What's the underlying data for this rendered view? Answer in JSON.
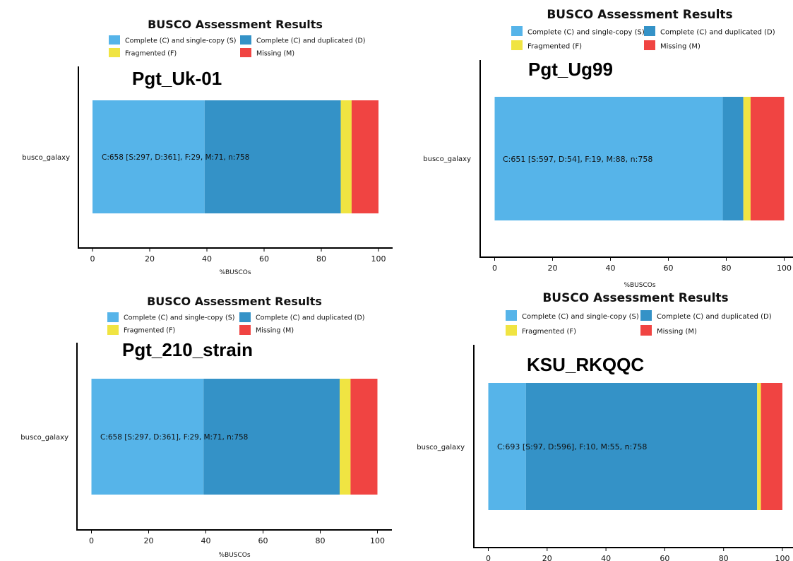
{
  "colors": {
    "single": "#56b4e9",
    "duplicated": "#3492c7",
    "fragmented": "#f0e442",
    "missing": "#f04442"
  },
  "legend": [
    {
      "key": "single",
      "label": "Complete (C) and single-copy (S)"
    },
    {
      "key": "duplicated",
      "label": "Complete (C) and duplicated (D)"
    },
    {
      "key": "fragmented",
      "label": "Fragmented (F)"
    },
    {
      "key": "missing",
      "label": "Missing (M)"
    }
  ],
  "chart_data": [
    {
      "type": "bar",
      "orientation": "horizontal",
      "stacked": true,
      "title": "BUSCO Assessment Results",
      "strain": "Pgt_Uk-01",
      "category": "busco_galaxy",
      "xlabel": "%BUSCOs",
      "xlim": [
        0,
        100
      ],
      "xticks": [
        "0",
        "20",
        "40",
        "60",
        "80",
        "100"
      ],
      "segments": {
        "single": 39.2,
        "duplicated": 47.6,
        "fragmented": 3.8,
        "missing": 9.4
      },
      "bar_label": "C:658 [S:297, D:361], F:29, M:71, n:758"
    },
    {
      "type": "bar",
      "orientation": "horizontal",
      "stacked": true,
      "title": "BUSCO Assessment Results",
      "strain": "Pgt_Ug99",
      "category": "busco_galaxy",
      "xlabel": "%BUSCOs",
      "xlim": [
        0,
        100
      ],
      "xticks": [
        "0",
        "20",
        "40",
        "60",
        "80",
        "100"
      ],
      "segments": {
        "single": 78.8,
        "duplicated": 7.1,
        "fragmented": 2.5,
        "missing": 11.6
      },
      "bar_label": "C:651 [S:597, D:54], F:19, M:88, n:758"
    },
    {
      "type": "bar",
      "orientation": "horizontal",
      "stacked": true,
      "title": "BUSCO Assessment Results",
      "strain": "Pgt_210_strain",
      "category": "busco_galaxy",
      "xlabel": "%BUSCOs",
      "xlim": [
        0,
        100
      ],
      "xticks": [
        "0",
        "20",
        "40",
        "60",
        "80",
        "100"
      ],
      "segments": {
        "single": 39.2,
        "duplicated": 47.6,
        "fragmented": 3.8,
        "missing": 9.4
      },
      "bar_label": "C:658 [S:297, D:361], F:29, M:71, n:758"
    },
    {
      "type": "bar",
      "orientation": "horizontal",
      "stacked": true,
      "title": "BUSCO Assessment Results",
      "strain": "KSU_RKQQC",
      "category": "busco_galaxy",
      "xlabel": "",
      "xlim": [
        0,
        100
      ],
      "xticks": [
        "0",
        "20",
        "40",
        "60",
        "80",
        "100"
      ],
      "segments": {
        "single": 12.8,
        "duplicated": 78.6,
        "fragmented": 1.3,
        "missing": 7.3
      },
      "bar_label": "C:693 [S:97, D:596], F:10, M:55, n:758"
    }
  ]
}
